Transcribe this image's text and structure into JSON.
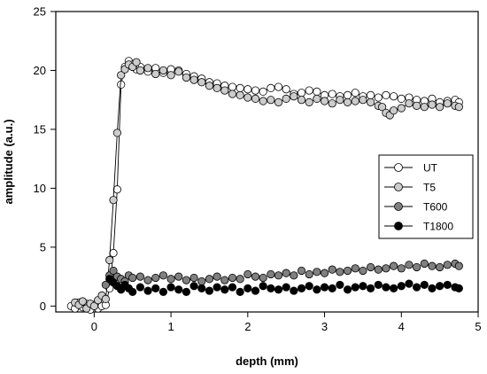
{
  "chart_data": {
    "type": "scatter",
    "xlabel": "depth (mm)",
    "ylabel": "amplitude (a.u.)",
    "xlim": [
      -0.5,
      5
    ],
    "ylim": [
      -0.5,
      25
    ],
    "xticks": [
      0,
      1,
      2,
      3,
      4,
      5
    ],
    "yticks": [
      0,
      5,
      10,
      15,
      20,
      25
    ],
    "legend_position": "right-middle",
    "series": [
      {
        "name": "UT",
        "marker_fill": "#ffffff",
        "connected": true,
        "x": [
          -0.3,
          -0.25,
          -0.2,
          -0.15,
          -0.1,
          -0.05,
          0.0,
          0.05,
          0.1,
          0.15,
          0.2,
          0.25,
          0.3,
          0.35,
          0.4,
          0.45,
          0.5,
          0.55,
          0.6,
          0.7,
          0.8,
          0.9,
          1.0,
          1.1,
          1.2,
          1.3,
          1.4,
          1.5,
          1.6,
          1.7,
          1.8,
          1.9,
          2.0,
          2.1,
          2.2,
          2.3,
          2.4,
          2.5,
          2.6,
          2.7,
          2.8,
          2.9,
          3.0,
          3.1,
          3.2,
          3.3,
          3.4,
          3.5,
          3.6,
          3.7,
          3.8,
          3.9,
          4.0,
          4.1,
          4.2,
          4.3,
          4.4,
          4.5,
          4.6,
          4.7,
          4.75
        ],
        "y": [
          0.0,
          -0.2,
          0.3,
          -0.1,
          0.2,
          -0.3,
          0.1,
          -0.2,
          0.0,
          0.1,
          1.5,
          4.5,
          9.9,
          18.8,
          20.3,
          20.8,
          20.5,
          20.1,
          20.3,
          19.9,
          20.2,
          19.8,
          20.1,
          20.0,
          19.7,
          19.5,
          19.3,
          19.0,
          18.9,
          18.7,
          18.6,
          18.5,
          18.4,
          18.3,
          18.2,
          18.5,
          18.6,
          18.4,
          18.0,
          18.1,
          18.3,
          18.2,
          17.9,
          18.0,
          17.8,
          17.9,
          18.1,
          17.8,
          17.9,
          17.7,
          17.9,
          17.8,
          17.6,
          17.7,
          17.5,
          17.4,
          17.6,
          17.3,
          17.4,
          17.5,
          17.3
        ]
      },
      {
        "name": "T5",
        "marker_fill": "#cccccc",
        "connected": true,
        "x": [
          -0.25,
          -0.2,
          -0.15,
          -0.1,
          -0.05,
          0.0,
          0.05,
          0.1,
          0.15,
          0.2,
          0.25,
          0.3,
          0.35,
          0.4,
          0.45,
          0.5,
          0.55,
          0.6,
          0.7,
          0.8,
          0.9,
          1.0,
          1.1,
          1.2,
          1.3,
          1.4,
          1.5,
          1.6,
          1.7,
          1.8,
          1.9,
          2.0,
          2.1,
          2.2,
          2.3,
          2.4,
          2.5,
          2.6,
          2.7,
          2.8,
          2.9,
          3.0,
          3.1,
          3.2,
          3.3,
          3.4,
          3.5,
          3.6,
          3.7,
          3.75,
          3.8,
          3.85,
          3.9,
          4.0,
          4.1,
          4.2,
          4.3,
          4.4,
          4.5,
          4.6,
          4.7,
          4.75
        ],
        "y": [
          0.3,
          0.1,
          0.4,
          -0.2,
          0.2,
          0.0,
          0.5,
          0.9,
          0.6,
          3.9,
          9.0,
          14.7,
          19.6,
          20.1,
          20.5,
          20.3,
          20.7,
          20.0,
          20.2,
          19.7,
          20.0,
          19.6,
          19.9,
          19.4,
          19.2,
          19.0,
          18.7,
          18.5,
          18.3,
          18.0,
          17.9,
          17.7,
          17.6,
          17.4,
          17.5,
          17.3,
          17.6,
          17.8,
          17.5,
          17.3,
          17.6,
          17.4,
          17.2,
          17.5,
          17.3,
          17.4,
          17.5,
          17.3,
          17.0,
          16.9,
          16.4,
          16.2,
          16.6,
          16.8,
          17.2,
          17.0,
          16.9,
          17.1,
          16.9,
          17.2,
          17.0,
          16.9
        ]
      },
      {
        "name": "T600",
        "marker_fill": "#808080",
        "connected": false,
        "x": [
          0.15,
          0.2,
          0.25,
          0.3,
          0.35,
          0.4,
          0.45,
          0.5,
          0.6,
          0.7,
          0.8,
          0.9,
          1.0,
          1.1,
          1.2,
          1.3,
          1.4,
          1.5,
          1.6,
          1.7,
          1.8,
          1.9,
          2.0,
          2.1,
          2.2,
          2.3,
          2.4,
          2.5,
          2.6,
          2.7,
          2.8,
          2.9,
          3.0,
          3.1,
          3.2,
          3.3,
          3.4,
          3.5,
          3.6,
          3.7,
          3.8,
          3.9,
          4.0,
          4.1,
          4.2,
          4.3,
          4.4,
          4.5,
          4.6,
          4.7,
          4.75
        ],
        "y": [
          1.8,
          2.6,
          3.0,
          2.5,
          2.3,
          2.1,
          2.6,
          2.4,
          2.5,
          2.2,
          2.4,
          2.6,
          2.3,
          2.5,
          2.2,
          2.4,
          2.1,
          2.3,
          2.5,
          2.2,
          2.4,
          2.3,
          2.7,
          2.5,
          2.4,
          2.7,
          2.6,
          2.8,
          2.6,
          3.0,
          2.7,
          2.9,
          2.8,
          3.1,
          2.9,
          3.0,
          3.2,
          3.0,
          3.3,
          3.1,
          3.2,
          3.4,
          3.2,
          3.5,
          3.3,
          3.6,
          3.4,
          3.3,
          3.5,
          3.6,
          3.4
        ]
      },
      {
        "name": "T1800",
        "marker_fill": "#000000",
        "connected": false,
        "x": [
          0.2,
          0.25,
          0.3,
          0.35,
          0.4,
          0.45,
          0.5,
          0.6,
          0.7,
          0.8,
          0.9,
          1.0,
          1.1,
          1.2,
          1.3,
          1.4,
          1.5,
          1.6,
          1.7,
          1.8,
          1.9,
          2.0,
          2.1,
          2.2,
          2.3,
          2.4,
          2.5,
          2.6,
          2.7,
          2.8,
          2.9,
          3.0,
          3.1,
          3.2,
          3.3,
          3.4,
          3.5,
          3.6,
          3.7,
          3.8,
          3.9,
          4.0,
          4.1,
          4.2,
          4.3,
          4.4,
          4.5,
          4.6,
          4.7,
          4.75
        ],
        "y": [
          2.3,
          2.0,
          1.7,
          1.4,
          1.8,
          1.5,
          1.2,
          1.6,
          1.3,
          1.5,
          1.2,
          1.6,
          1.4,
          1.2,
          1.7,
          1.5,
          1.3,
          1.6,
          1.4,
          1.6,
          1.2,
          1.5,
          1.3,
          1.7,
          1.5,
          1.4,
          1.6,
          1.3,
          1.5,
          1.7,
          1.4,
          1.6,
          1.5,
          1.8,
          1.4,
          1.6,
          1.7,
          1.5,
          1.8,
          1.6,
          1.5,
          1.7,
          1.9,
          1.6,
          1.8,
          1.5,
          1.7,
          1.8,
          1.6,
          1.5
        ]
      }
    ]
  }
}
